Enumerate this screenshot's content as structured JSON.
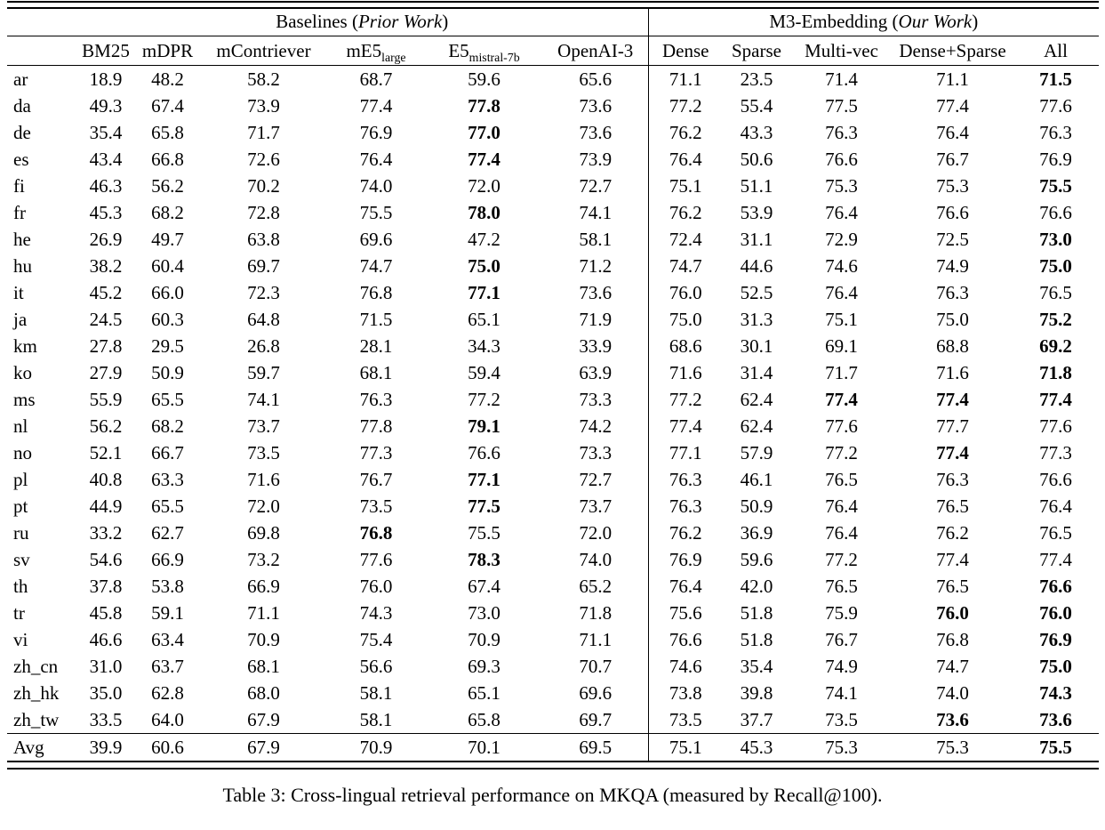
{
  "caption": "Table 3: Cross-lingual retrieval performance on MKQA (measured by Recall@100).",
  "table": {
    "group_headers": {
      "baselines": {
        "prefix": "Baselines (",
        "italic": "Prior Work",
        "suffix": ")"
      },
      "m3": {
        "prefix": "M3-Embedding (",
        "italic": "Our Work",
        "suffix": ")"
      }
    },
    "columns": [
      {
        "id": "bm25",
        "label": "BM25"
      },
      {
        "id": "mdpr",
        "label": "mDPR"
      },
      {
        "id": "mcontriever",
        "label": "mContriever"
      },
      {
        "id": "me5-large",
        "label": "mE5",
        "sub": "large"
      },
      {
        "id": "e5-mistral-7b",
        "label": "E5",
        "sub": "mistral-7b"
      },
      {
        "id": "openai-3",
        "label": "OpenAI-3"
      },
      {
        "id": "dense",
        "label": "Dense"
      },
      {
        "id": "sparse",
        "label": "Sparse"
      },
      {
        "id": "multi-vec",
        "label": "Multi-vec"
      },
      {
        "id": "dense-sparse",
        "label": "Dense+Sparse"
      },
      {
        "id": "all",
        "label": "All"
      }
    ],
    "rows": [
      {
        "lang": "ar",
        "values": [
          "18.9",
          "48.2",
          "58.2",
          "68.7",
          "59.6",
          "65.6",
          "71.1",
          "23.5",
          "71.4",
          "71.1",
          "71.5"
        ],
        "bold": [
          10
        ]
      },
      {
        "lang": "da",
        "values": [
          "49.3",
          "67.4",
          "73.9",
          "77.4",
          "77.8",
          "73.6",
          "77.2",
          "55.4",
          "77.5",
          "77.4",
          "77.6"
        ],
        "bold": [
          4
        ]
      },
      {
        "lang": "de",
        "values": [
          "35.4",
          "65.8",
          "71.7",
          "76.9",
          "77.0",
          "73.6",
          "76.2",
          "43.3",
          "76.3",
          "76.4",
          "76.3"
        ],
        "bold": [
          4
        ]
      },
      {
        "lang": "es",
        "values": [
          "43.4",
          "66.8",
          "72.6",
          "76.4",
          "77.4",
          "73.9",
          "76.4",
          "50.6",
          "76.6",
          "76.7",
          "76.9"
        ],
        "bold": [
          4
        ]
      },
      {
        "lang": "fi",
        "values": [
          "46.3",
          "56.2",
          "70.2",
          "74.0",
          "72.0",
          "72.7",
          "75.1",
          "51.1",
          "75.3",
          "75.3",
          "75.5"
        ],
        "bold": [
          10
        ]
      },
      {
        "lang": "fr",
        "values": [
          "45.3",
          "68.2",
          "72.8",
          "75.5",
          "78.0",
          "74.1",
          "76.2",
          "53.9",
          "76.4",
          "76.6",
          "76.6"
        ],
        "bold": [
          4
        ]
      },
      {
        "lang": "he",
        "values": [
          "26.9",
          "49.7",
          "63.8",
          "69.6",
          "47.2",
          "58.1",
          "72.4",
          "31.1",
          "72.9",
          "72.5",
          "73.0"
        ],
        "bold": [
          10
        ]
      },
      {
        "lang": "hu",
        "values": [
          "38.2",
          "60.4",
          "69.7",
          "74.7",
          "75.0",
          "71.2",
          "74.7",
          "44.6",
          "74.6",
          "74.9",
          "75.0"
        ],
        "bold": [
          4,
          10
        ]
      },
      {
        "lang": "it",
        "values": [
          "45.2",
          "66.0",
          "72.3",
          "76.8",
          "77.1",
          "73.6",
          "76.0",
          "52.5",
          "76.4",
          "76.3",
          "76.5"
        ],
        "bold": [
          4
        ]
      },
      {
        "lang": "ja",
        "values": [
          "24.5",
          "60.3",
          "64.8",
          "71.5",
          "65.1",
          "71.9",
          "75.0",
          "31.3",
          "75.1",
          "75.0",
          "75.2"
        ],
        "bold": [
          10
        ]
      },
      {
        "lang": "km",
        "values": [
          "27.8",
          "29.5",
          "26.8",
          "28.1",
          "34.3",
          "33.9",
          "68.6",
          "30.1",
          "69.1",
          "68.8",
          "69.2"
        ],
        "bold": [
          10
        ]
      },
      {
        "lang": "ko",
        "values": [
          "27.9",
          "50.9",
          "59.7",
          "68.1",
          "59.4",
          "63.9",
          "71.6",
          "31.4",
          "71.7",
          "71.6",
          "71.8"
        ],
        "bold": [
          10
        ]
      },
      {
        "lang": "ms",
        "values": [
          "55.9",
          "65.5",
          "74.1",
          "76.3",
          "77.2",
          "73.3",
          "77.2",
          "62.4",
          "77.4",
          "77.4",
          "77.4"
        ],
        "bold": [
          8,
          9,
          10
        ]
      },
      {
        "lang": "nl",
        "values": [
          "56.2",
          "68.2",
          "73.7",
          "77.8",
          "79.1",
          "74.2",
          "77.4",
          "62.4",
          "77.6",
          "77.7",
          "77.6"
        ],
        "bold": [
          4
        ]
      },
      {
        "lang": "no",
        "values": [
          "52.1",
          "66.7",
          "73.5",
          "77.3",
          "76.6",
          "73.3",
          "77.1",
          "57.9",
          "77.2",
          "77.4",
          "77.3"
        ],
        "bold": [
          9
        ]
      },
      {
        "lang": "pl",
        "values": [
          "40.8",
          "63.3",
          "71.6",
          "76.7",
          "77.1",
          "72.7",
          "76.3",
          "46.1",
          "76.5",
          "76.3",
          "76.6"
        ],
        "bold": [
          4
        ]
      },
      {
        "lang": "pt",
        "values": [
          "44.9",
          "65.5",
          "72.0",
          "73.5",
          "77.5",
          "73.7",
          "76.3",
          "50.9",
          "76.4",
          "76.5",
          "76.4"
        ],
        "bold": [
          4
        ]
      },
      {
        "lang": "ru",
        "values": [
          "33.2",
          "62.7",
          "69.8",
          "76.8",
          "75.5",
          "72.0",
          "76.2",
          "36.9",
          "76.4",
          "76.2",
          "76.5"
        ],
        "bold": [
          3
        ]
      },
      {
        "lang": "sv",
        "values": [
          "54.6",
          "66.9",
          "73.2",
          "77.6",
          "78.3",
          "74.0",
          "76.9",
          "59.6",
          "77.2",
          "77.4",
          "77.4"
        ],
        "bold": [
          4
        ]
      },
      {
        "lang": "th",
        "values": [
          "37.8",
          "53.8",
          "66.9",
          "76.0",
          "67.4",
          "65.2",
          "76.4",
          "42.0",
          "76.5",
          "76.5",
          "76.6"
        ],
        "bold": [
          10
        ]
      },
      {
        "lang": "tr",
        "values": [
          "45.8",
          "59.1",
          "71.1",
          "74.3",
          "73.0",
          "71.8",
          "75.6",
          "51.8",
          "75.9",
          "76.0",
          "76.0"
        ],
        "bold": [
          9,
          10
        ]
      },
      {
        "lang": "vi",
        "values": [
          "46.6",
          "63.4",
          "70.9",
          "75.4",
          "70.9",
          "71.1",
          "76.6",
          "51.8",
          "76.7",
          "76.8",
          "76.9"
        ],
        "bold": [
          10
        ]
      },
      {
        "lang": "zh_cn",
        "values": [
          "31.0",
          "63.7",
          "68.1",
          "56.6",
          "69.3",
          "70.7",
          "74.6",
          "35.4",
          "74.9",
          "74.7",
          "75.0"
        ],
        "bold": [
          10
        ]
      },
      {
        "lang": "zh_hk",
        "values": [
          "35.0",
          "62.8",
          "68.0",
          "58.1",
          "65.1",
          "69.6",
          "73.8",
          "39.8",
          "74.1",
          "74.0",
          "74.3"
        ],
        "bold": [
          10
        ]
      },
      {
        "lang": "zh_tw",
        "values": [
          "33.5",
          "64.0",
          "67.9",
          "58.1",
          "65.8",
          "69.7",
          "73.5",
          "37.7",
          "73.5",
          "73.6",
          "73.6"
        ],
        "bold": [
          9,
          10
        ]
      }
    ],
    "avg_row": {
      "lang": "Avg",
      "values": [
        "39.9",
        "60.6",
        "67.9",
        "70.9",
        "70.1",
        "69.5",
        "75.1",
        "45.3",
        "75.3",
        "75.3",
        "75.5"
      ],
      "bold": [
        10
      ]
    }
  }
}
